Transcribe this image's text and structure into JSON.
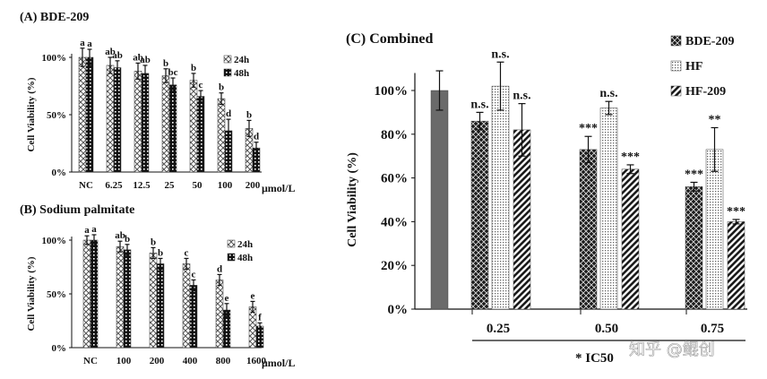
{
  "chart_data": [
    {
      "id": "A",
      "type": "bar",
      "title": "(A) BDE-209",
      "ylabel": "Cell Viability (%)",
      "xunit": "μmol/L",
      "ylim": [
        0,
        100
      ],
      "yticks": [
        "0%",
        "50%",
        "100%"
      ],
      "categories": [
        "NC",
        "6.25",
        "12.5",
        "25",
        "50",
        "100",
        "200"
      ],
      "series": [
        {
          "name": "24h",
          "values": [
            100,
            93,
            88,
            84,
            80,
            64,
            38
          ],
          "errors": [
            8,
            7,
            7,
            6,
            6,
            5,
            7
          ]
        },
        {
          "name": "48h",
          "values": [
            100,
            91,
            86,
            76,
            66,
            36,
            21
          ],
          "errors": [
            7,
            6,
            7,
            6,
            5,
            10,
            5
          ]
        }
      ],
      "labels": [
        [
          "a",
          "a"
        ],
        [
          "ab",
          "ab"
        ],
        [
          "ab",
          "ab"
        ],
        [
          "b",
          "bc"
        ],
        [
          "b",
          "c"
        ],
        [
          "b",
          "d"
        ],
        [
          "b",
          "d"
        ]
      ],
      "legend": "right"
    },
    {
      "id": "B",
      "type": "bar",
      "title": "(B) Sodium palmitate",
      "ylabel": "Cell Viability (%)",
      "xunit": "μmol/L",
      "ylim": [
        0,
        100
      ],
      "yticks": [
        "0%",
        "50%",
        "100%"
      ],
      "categories": [
        "NC",
        "100",
        "200",
        "400",
        "800",
        "1600"
      ],
      "series": [
        {
          "name": "24h",
          "values": [
            100,
            94,
            88,
            78,
            63,
            38
          ],
          "errors": [
            4,
            5,
            5,
            5,
            5,
            5
          ]
        },
        {
          "name": "48h",
          "values": [
            100,
            91,
            78,
            58,
            35,
            20
          ],
          "errors": [
            5,
            5,
            5,
            5,
            6,
            3
          ]
        }
      ],
      "labels": [
        [
          "a",
          "a"
        ],
        [
          "ab",
          "b"
        ],
        [
          "b",
          "b"
        ],
        [
          "c",
          "c"
        ],
        [
          "d",
          "e"
        ],
        [
          "e",
          "f"
        ]
      ],
      "legend": "right"
    },
    {
      "id": "C",
      "type": "bar",
      "title": "(C) Combined",
      "ylabel": "Cell Viability (%)",
      "xlabel": "* IC50",
      "ylim": [
        0,
        100
      ],
      "yticks": [
        "0%",
        "20%",
        "40%",
        "60%",
        "80%",
        "100%"
      ],
      "control": {
        "value": 100,
        "error": 9
      },
      "categories": [
        "0.25",
        "0.50",
        "0.75"
      ],
      "series": [
        {
          "name": "BDE-209",
          "values": [
            86,
            73,
            56
          ],
          "errors": [
            4,
            6,
            2
          ],
          "labels": [
            "n.s.",
            "***",
            "***"
          ]
        },
        {
          "name": "HF",
          "values": [
            102,
            92,
            73
          ],
          "errors": [
            11,
            3,
            10
          ],
          "labels": [
            "n.s.",
            "n.s.",
            "**"
          ]
        },
        {
          "name": "HF-209",
          "values": [
            82,
            64,
            40
          ],
          "errors": [
            12,
            2,
            1
          ],
          "labels": [
            "n.s.",
            "***",
            "***"
          ]
        }
      ],
      "legend": "top-right"
    }
  ],
  "watermark": "知乎 @鲲创"
}
